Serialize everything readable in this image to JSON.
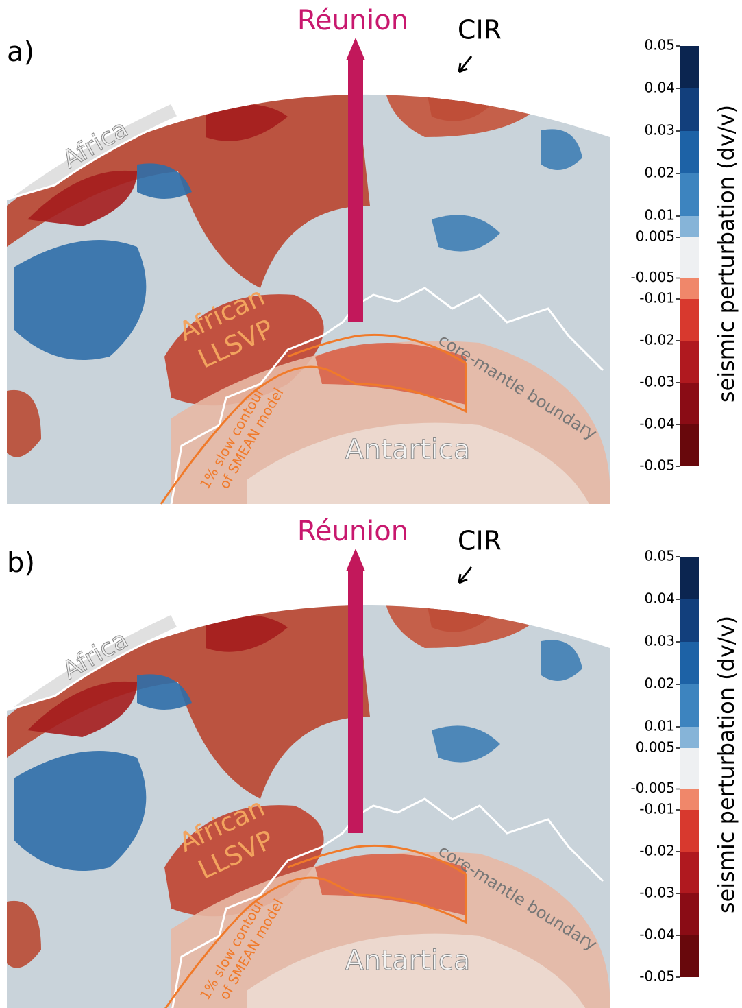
{
  "panels": [
    {
      "label": "a)",
      "plume": "Réunion",
      "ridge": "CIR",
      "continent": "Africa",
      "llsvp": [
        "African",
        "LLSVP"
      ],
      "cmb": "core-mantle boundary",
      "contour": [
        "1% slow contour",
        "of SMEAN model"
      ],
      "pole": "Antartica",
      "colorbar": {
        "label": "seismic perturbation (dv/v)",
        "ticks": [
          0.05,
          0.04,
          0.03,
          0.02,
          0.01,
          0.005,
          -0.005,
          -0.01,
          -0.02,
          -0.03,
          -0.04,
          -0.05
        ],
        "colors": [
          "#0b2550",
          "#123f7c",
          "#1d62a6",
          "#3d84bf",
          "#86b4d8",
          "#eef0f2",
          "#f0876a",
          "#d8392e",
          "#b0191f",
          "#8a0c15",
          "#68080c"
        ]
      }
    },
    {
      "label": "b)",
      "plume": "Réunion",
      "ridge": "CIR",
      "continent": "Africa",
      "llsvp": [
        "African",
        "LLSVP"
      ],
      "cmb": "core-mantle boundary",
      "contour": [
        "1% slow contour",
        "of SMEAN model"
      ],
      "pole": "Antartica",
      "colorbar": {
        "label": "seismic perturbation (dv/v)",
        "ticks": [
          0.05,
          0.04,
          0.03,
          0.02,
          0.01,
          0.005,
          -0.005,
          -0.01,
          -0.02,
          -0.03,
          -0.04,
          -0.05
        ],
        "colors": [
          "#0b2550",
          "#123f7c",
          "#1d62a6",
          "#3d84bf",
          "#86b4d8",
          "#eef0f2",
          "#f0876a",
          "#d8392e",
          "#b0191f",
          "#8a0c15",
          "#68080c"
        ]
      }
    }
  ]
}
